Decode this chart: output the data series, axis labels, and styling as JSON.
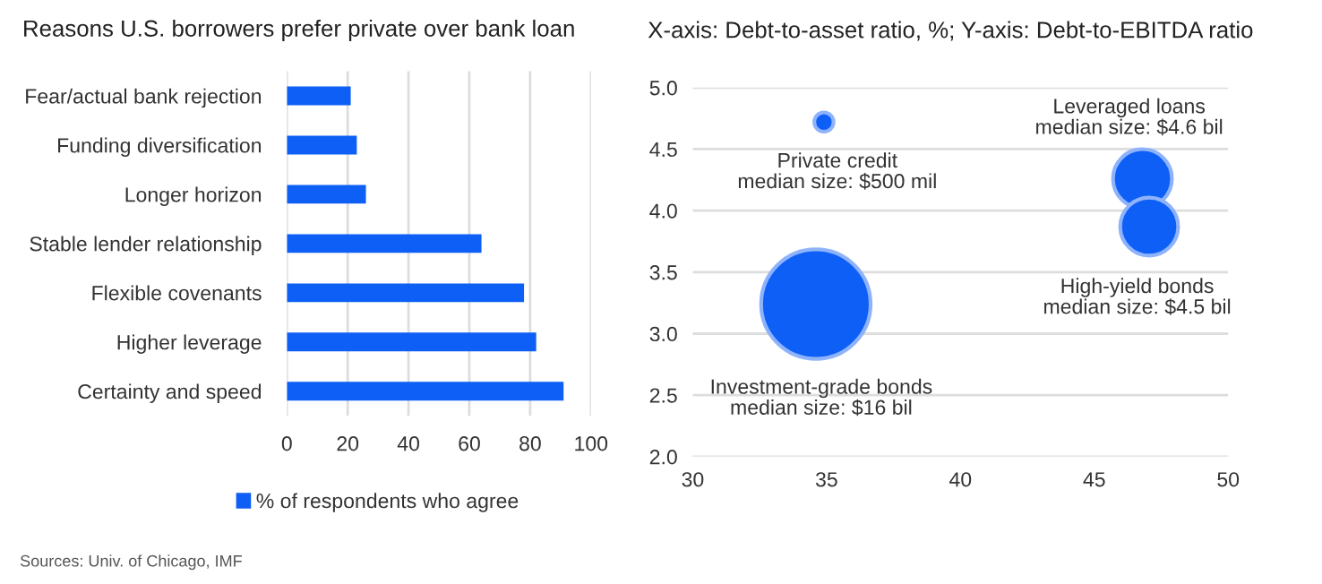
{
  "chart_data": [
    {
      "type": "bar",
      "orientation": "horizontal",
      "title": "Reasons U.S. borrowers prefer private over bank loan",
      "categories": [
        "Fear/actual bank rejection",
        "Funding diversification",
        "Longer horizon",
        "Stable lender relationship",
        "Flexible covenants",
        "Higher leverage",
        "Certainty and speed"
      ],
      "series": [
        {
          "name": "% of respondents who agree",
          "color": "#0d5ff5",
          "values": [
            21,
            23,
            26,
            64,
            78,
            82,
            91
          ]
        }
      ],
      "xlim": [
        0,
        100
      ],
      "xticks": [
        0,
        20,
        40,
        60,
        80,
        100
      ],
      "grid": "x",
      "legend": "bottom",
      "annotations": [
        "Sources: Univ. of Chicago, IMF"
      ]
    },
    {
      "type": "bubble",
      "title": "X-axis: Debt-to-asset ratio, %; Y-axis: Debt-to-EBITDA ratio",
      "series": [
        {
          "color": "#0d5ff5",
          "x": [
            34.9,
            34.6,
            46.8,
            47.05
          ],
          "values": [
            4.72,
            3.24,
            4.26,
            3.87
          ],
          "sizes": [
            0.031,
            1,
            0.29,
            0.28
          ]
        }
      ],
      "xlim": [
        30,
        50
      ],
      "xticks": [
        30,
        35,
        40,
        45,
        50
      ],
      "ylim": [
        2.0,
        5.0
      ],
      "yticks": [
        {
          "value": 2.0,
          "label": "2.0"
        },
        {
          "value": 2.5,
          "label": "2.5"
        },
        {
          "value": 3.0,
          "label": "3.0"
        },
        {
          "value": 3.5,
          "label": "3.5"
        },
        {
          "value": 4.0,
          "label": "4.0"
        },
        {
          "value": 4.5,
          "label": "4.5"
        },
        {
          "value": 5.0,
          "label": "5.0"
        }
      ],
      "grid": "y",
      "annotations": [
        "Private credit\nmedian size: $500 mil",
        "Leveraged loans\nmedian size: $4.6 bil",
        "High-yield bonds\nmedian size: $4.5 bil",
        "Investment-grade bonds\nmedian size: $16 bil"
      ]
    }
  ]
}
